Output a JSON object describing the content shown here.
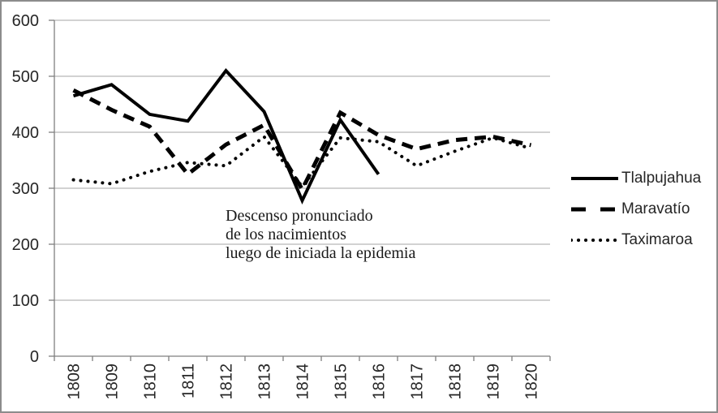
{
  "chart_data": {
    "type": "line",
    "title": "",
    "xlabel": "",
    "ylabel": "",
    "x": [
      1808,
      1809,
      1810,
      1811,
      1812,
      1813,
      1814,
      1815,
      1816,
      1817,
      1818,
      1819,
      1820
    ],
    "yticks": [
      0,
      100,
      200,
      300,
      400,
      500,
      600
    ],
    "ylim": [
      0,
      600
    ],
    "grid": true,
    "legend_position": "right",
    "series": [
      {
        "name": "Tlalpujahua",
        "line_style": "solid",
        "color": "#000000",
        "values": [
          465,
          485,
          432,
          420,
          510,
          437,
          278,
          422,
          325,
          null,
          null,
          null,
          null
        ]
      },
      {
        "name": "Maravatío",
        "line_style": "dashed",
        "color": "#000000",
        "values": [
          475,
          440,
          410,
          325,
          378,
          413,
          298,
          435,
          395,
          370,
          386,
          392,
          377
        ]
      },
      {
        "name": "Taximaroa",
        "line_style": "dotted",
        "color": "#000000",
        "values": [
          315,
          308,
          330,
          346,
          340,
          392,
          303,
          390,
          383,
          340,
          366,
          390,
          371
        ]
      }
    ],
    "annotation": {
      "lines": [
        "Descenso pronunciado",
        "de los nacimientos",
        "luego de iniciada la epidemia"
      ]
    }
  },
  "colors": {
    "series": "#000000",
    "gridline": "#a6a6a6",
    "axis": "#7f7f7f",
    "tick_text": "#262626",
    "annotation_text": "#1a1a1a",
    "frame_border": "#8c8c8c",
    "background": "#ffffff"
  }
}
